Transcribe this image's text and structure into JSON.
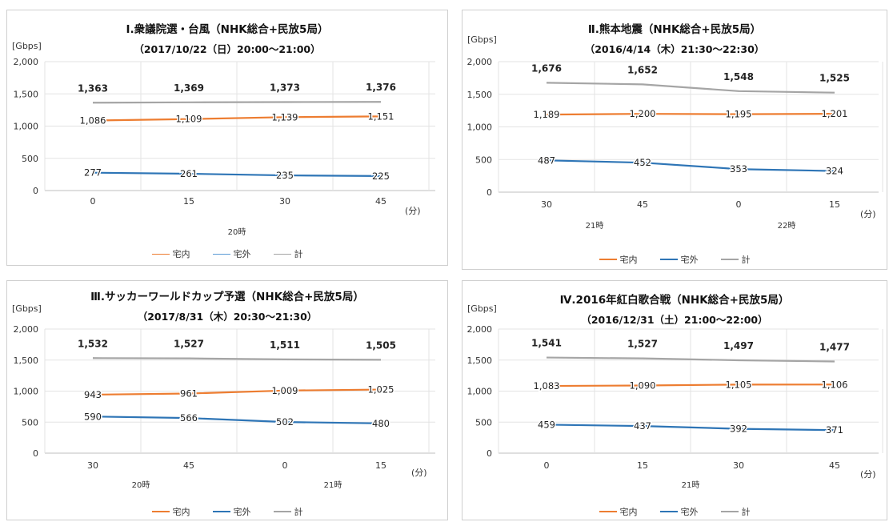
{
  "colors": {
    "home": "#ed7d31",
    "outside": "#2e75b6",
    "total": "#a5a5a5"
  },
  "legend": {
    "home": "宅内",
    "outside": "宅外",
    "total": "計"
  },
  "chart_data": [
    {
      "type": "line",
      "title": "Ⅰ.衆議院選・台風（NHK総合+民放5局）",
      "subtitle": "（2017/10/22（日）20:00～21:00）",
      "ylabel": "[Gbps]",
      "xunit": "(分)",
      "ylim": [
        0,
        2000
      ],
      "yticks": [
        "2,000",
        "1,500",
        "1,000",
        "500",
        "0"
      ],
      "x": [
        "0",
        "15",
        "30",
        "45"
      ],
      "hour_labels": [
        "20時"
      ],
      "series": [
        {
          "name": "宅内",
          "key": "home",
          "values": [
            1086,
            1109,
            1139,
            1151
          ],
          "labels": [
            "1,086",
            "1,109",
            "1,139",
            "1,151"
          ]
        },
        {
          "name": "宅外",
          "key": "outside",
          "values": [
            277,
            261,
            235,
            225
          ],
          "labels": [
            "277",
            "261",
            "235",
            "225"
          ]
        },
        {
          "name": "計",
          "key": "total",
          "values": [
            1363,
            1369,
            1373,
            1376
          ],
          "labels": [
            "1,363",
            "1,369",
            "1,373",
            "1,376"
          ]
        }
      ]
    },
    {
      "type": "line",
      "title": "Ⅱ.熊本地震（NHK総合+民放5局）",
      "subtitle": "（2016/4/14（木）21:30～22:30）",
      "ylabel": "[Gbps]",
      "xunit": "(分)",
      "ylim": [
        0,
        2000
      ],
      "yticks": [
        "2,000",
        "1,500",
        "1,000",
        "500",
        "0"
      ],
      "x": [
        "30",
        "45",
        "0",
        "15"
      ],
      "hour_labels": [
        "21時",
        "22時"
      ],
      "series": [
        {
          "name": "宅内",
          "key": "home",
          "values": [
            1189,
            1200,
            1195,
            1201
          ],
          "labels": [
            "1,189",
            "1,200",
            "1,195",
            "1,201"
          ]
        },
        {
          "name": "宅外",
          "key": "outside",
          "values": [
            487,
            452,
            353,
            324
          ],
          "labels": [
            "487",
            "452",
            "353",
            "324"
          ]
        },
        {
          "name": "計",
          "key": "total",
          "values": [
            1676,
            1652,
            1548,
            1525
          ],
          "labels": [
            "1,676",
            "1,652",
            "1,548",
            "1,525"
          ]
        }
      ]
    },
    {
      "type": "line",
      "title": "Ⅲ.サッカーワールドカップ予選（NHK総合+民放5局）",
      "subtitle": "（2017/8/31（木）20:30～21:30）",
      "ylabel": "[Gbps]",
      "xunit": "(分)",
      "ylim": [
        0,
        2000
      ],
      "yticks": [
        "2,000",
        "1,500",
        "1,000",
        "500",
        "0"
      ],
      "x": [
        "30",
        "45",
        "0",
        "15"
      ],
      "hour_labels": [
        "20時",
        "21時"
      ],
      "series": [
        {
          "name": "宅内",
          "key": "home",
          "values": [
            943,
            961,
            1009,
            1025
          ],
          "labels": [
            "943",
            "961",
            "1,009",
            "1,025"
          ]
        },
        {
          "name": "宅外",
          "key": "outside",
          "values": [
            590,
            566,
            502,
            480
          ],
          "labels": [
            "590",
            "566",
            "502",
            "480"
          ]
        },
        {
          "name": "計",
          "key": "total",
          "values": [
            1532,
            1527,
            1511,
            1505
          ],
          "labels": [
            "1,532",
            "1,527",
            "1,511",
            "1,505"
          ]
        }
      ]
    },
    {
      "type": "line",
      "title": "Ⅳ.2016年紅白歌合戦（NHK総合+民放5局）",
      "subtitle": "（2016/12/31（土）21:00～22:00）",
      "ylabel": "[Gbps]",
      "xunit": "(分)",
      "ylim": [
        0,
        2000
      ],
      "yticks": [
        "2,000",
        "1,500",
        "1,000",
        "500",
        "0"
      ],
      "x": [
        "0",
        "15",
        "30",
        "45"
      ],
      "hour_labels": [
        "21時"
      ],
      "series": [
        {
          "name": "宅内",
          "key": "home",
          "values": [
            1083,
            1090,
            1105,
            1106
          ],
          "labels": [
            "1,083",
            "1,090",
            "1,105",
            "1,106"
          ]
        },
        {
          "name": "宅外",
          "key": "outside",
          "values": [
            459,
            437,
            392,
            371
          ],
          "labels": [
            "459",
            "437",
            "392",
            "371"
          ]
        },
        {
          "name": "計",
          "key": "total",
          "values": [
            1541,
            1527,
            1497,
            1477
          ],
          "labels": [
            "1,541",
            "1,527",
            "1,497",
            "1,477"
          ]
        }
      ]
    }
  ]
}
